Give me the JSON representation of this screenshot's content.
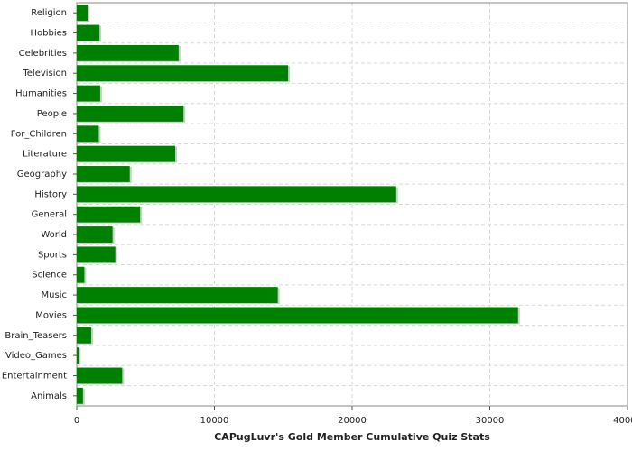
{
  "chart_data": {
    "type": "hbar",
    "title": "CAPugLuvr's Gold Member Cumulative Quiz Stats",
    "categories": [
      "Religion",
      "Hobbies",
      "Celebrities",
      "Television",
      "Humanities",
      "People",
      "For_Children",
      "Literature",
      "Geography",
      "History",
      "General",
      "World",
      "Sports",
      "Science",
      "Music",
      "Movies",
      "Brain_Teasers",
      "Video_Games",
      "Entertainment",
      "Animals"
    ],
    "values": [
      800,
      1650,
      7400,
      15350,
      1700,
      7750,
      1600,
      7150,
      3850,
      23200,
      4600,
      2600,
      2800,
      550,
      14600,
      32050,
      1050,
      150,
      3300,
      450
    ],
    "color": "#008000",
    "shadow_color": "#b5dcb5",
    "xlim": [
      0,
      40000
    ],
    "xticks": [
      0,
      10000,
      20000,
      30000,
      40000
    ],
    "grid": true
  }
}
